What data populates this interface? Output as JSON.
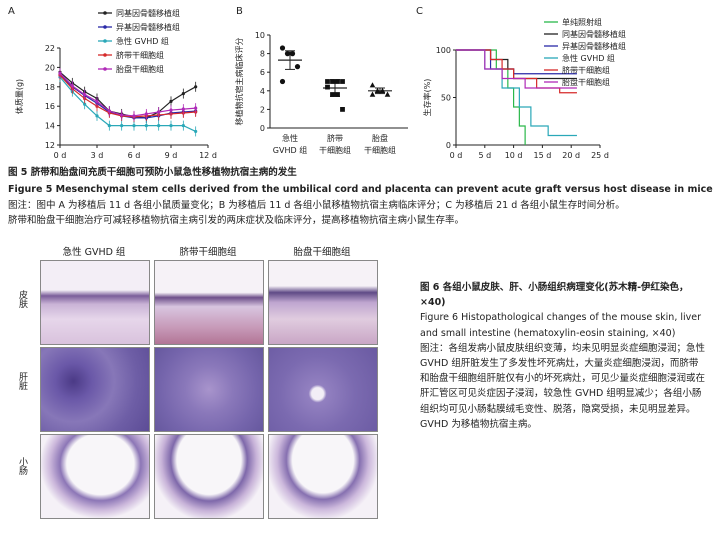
{
  "fig5": {
    "title": "图 5   脐带和胎盘间充质干细胞可预防小鼠急性移植物抗宿主病的发生",
    "title_en": "Figure 5   Mesenchymal stem cells derived from the umbilical cord and placenta can prevent acute graft versus host disease in mice",
    "note1": "图注：图中 A 为移植后 11 d 各组小鼠质量变化；B 为移植后 11 d 各组小鼠移植物抗宿主病临床评分；C 为移植后 21 d 各组小鼠生存时间分析。",
    "note2": "脐带和胎盘干细胞治疗可减轻移植物抗宿主病引发的两床症状及临床评分，提高移植物抗宿主病小鼠生存率。"
  },
  "fig6": {
    "col_headers": [
      "急性 GVHD 组",
      "脐带干细胞组",
      "胎盘干细胞组"
    ],
    "row_headers": [
      "皮肤",
      "肝脏",
      "小肠"
    ],
    "title": "图 6   各组小鼠皮肤、肝、小肠组织病理变化(苏木精-伊红染色，×40)",
    "title_en": "Figure 6   Histopathological changes of the mouse skin, liver and small intestine (hematoxylin-eosin staining, ×40)",
    "note": "图注：各组发病小鼠皮肤组织变薄，均未见明显炎症细胞浸润；急性 GVHD 组肝脏发生了多发性坏死病灶，大量炎症细胞浸润，而脐带和胎盘干细胞组肝脏仅有小的坏死病灶，可见少量炎症细胞浸润或在肝汇管区可见炎症因子浸润，较急性 GVHD 组明显减少；各组小肠组织均可见小肠黏膜绒毛变性、脱落，隐窝受损，未见明显差异。GVHD 为移植物抗宿主病。"
  },
  "chart_data": [
    {
      "panel": "A",
      "type": "line",
      "ylabel": "体质量(g)",
      "x_ticks": [
        "0 d",
        "3 d",
        "6 d",
        "9 d",
        "12 d"
      ],
      "y_ticks": [
        12,
        14,
        16,
        18,
        20,
        22
      ],
      "ylim": [
        12,
        22
      ],
      "xlim": [
        0,
        12
      ],
      "x": [
        0,
        1,
        2,
        3,
        4,
        5,
        6,
        7,
        8,
        9,
        10,
        11
      ],
      "series": [
        {
          "name": "同基因骨髓移植组",
          "color": "#222222",
          "marker": "circle",
          "values": [
            19.5,
            18.4,
            17.5,
            16.8,
            15.5,
            15.2,
            14.9,
            14.8,
            15.4,
            16.5,
            17.3,
            18.0
          ]
        },
        {
          "name": "异基因骨髓移植组",
          "color": "#2a2aa8",
          "marker": "circle",
          "values": [
            19.3,
            18.0,
            17.1,
            16.3,
            15.4,
            15.0,
            14.8,
            14.8,
            15.0,
            15.3,
            15.4,
            15.5
          ]
        },
        {
          "name": "急性 GVHD 组",
          "color": "#2aa8b8",
          "marker": "circle",
          "values": [
            19.0,
            17.5,
            16.2,
            15.0,
            14.0,
            14.0,
            14.0,
            14.0,
            14.0,
            14.0,
            14.0,
            13.4
          ]
        },
        {
          "name": "脐带干细胞组",
          "color": "#d62a2a",
          "marker": "circle",
          "values": [
            19.2,
            17.8,
            16.8,
            16.0,
            15.3,
            15.0,
            14.9,
            15.0,
            15.1,
            15.2,
            15.3,
            15.4
          ]
        },
        {
          "name": "胎盘干细胞组",
          "color": "#b02ab8",
          "marker": "circle",
          "values": [
            19.4,
            18.1,
            17.2,
            16.5,
            15.5,
            15.1,
            15.0,
            15.2,
            15.4,
            15.6,
            15.7,
            15.8
          ]
        }
      ]
    },
    {
      "panel": "B",
      "type": "scatter",
      "ylabel": "移植物抗宿主病临床评分",
      "y_ticks": [
        0,
        2,
        4,
        6,
        8,
        10
      ],
      "ylim": [
        0,
        10
      ],
      "categories": [
        "急性 GVHD 组",
        "脐带干细胞组",
        "胎盘干细胞组"
      ],
      "groups": [
        {
          "category": "急性 GVHD 组",
          "marker": "circle",
          "mean": 7.3,
          "sd": 1.0,
          "points": [
            8.6,
            8.0,
            8.0,
            6.6,
            5.0
          ]
        },
        {
          "category": "脐带干细胞组",
          "marker": "square",
          "mean": 4.3,
          "sd": 0.9,
          "points": [
            5.0,
            5.0,
            5.0,
            5.0,
            4.4,
            3.6,
            3.6,
            2.0
          ]
        },
        {
          "category": "胎盘干细胞组",
          "marker": "triangle",
          "mean": 4.0,
          "sd": 0.3,
          "points": [
            4.6,
            4.0,
            4.0,
            3.6,
            3.6
          ]
        }
      ]
    },
    {
      "panel": "C",
      "type": "line",
      "ylabel": "生存率(%)",
      "x_ticks": [
        "0 d",
        "5 d",
        "10 d",
        "15 d",
        "20 d",
        "25 d"
      ],
      "y_ticks": [
        0,
        50,
        100
      ],
      "ylim": [
        0,
        100
      ],
      "xlim": [
        0,
        25
      ],
      "legend": [
        "单纯照射组",
        "同基因骨髓移植组",
        "异基因骨髓移植组",
        "急性 GVHD 组",
        "脐带干细胞组",
        "胎盘干细胞组"
      ],
      "series": [
        {
          "name": "单纯照射组",
          "color": "#2ab84a",
          "steps": [
            [
              0,
              100
            ],
            [
              7,
              100
            ],
            [
              7,
              80
            ],
            [
              9,
              80
            ],
            [
              9,
              60
            ],
            [
              10,
              60
            ],
            [
              10,
              40
            ],
            [
              11,
              40
            ],
            [
              11,
              20
            ],
            [
              12,
              20
            ],
            [
              12,
              0
            ]
          ]
        },
        {
          "name": "同基因骨髓移植组",
          "color": "#222222",
          "steps": [
            [
              0,
              100
            ],
            [
              6,
              100
            ],
            [
              6,
              90
            ],
            [
              9,
              90
            ],
            [
              9,
              80
            ],
            [
              10,
              80
            ],
            [
              10,
              70
            ],
            [
              21,
              70
            ]
          ]
        },
        {
          "name": "异基因骨髓移植组",
          "color": "#2a2aa8",
          "steps": [
            [
              0,
              100
            ],
            [
              6,
              100
            ],
            [
              6,
              80
            ],
            [
              10,
              80
            ],
            [
              10,
              75
            ],
            [
              21,
              75
            ]
          ]
        },
        {
          "name": "急性 GVHD 组",
          "color": "#2aa8b8",
          "steps": [
            [
              0,
              100
            ],
            [
              5,
              100
            ],
            [
              5,
              80
            ],
            [
              8,
              80
            ],
            [
              8,
              60
            ],
            [
              11,
              60
            ],
            [
              11,
              40
            ],
            [
              13,
              40
            ],
            [
              13,
              20
            ],
            [
              16,
              20
            ],
            [
              16,
              10
            ],
            [
              21,
              10
            ]
          ]
        },
        {
          "name": "脐带干细胞组",
          "color": "#d62a2a",
          "steps": [
            [
              0,
              100
            ],
            [
              6,
              100
            ],
            [
              6,
              90
            ],
            [
              8,
              90
            ],
            [
              8,
              80
            ],
            [
              10,
              80
            ],
            [
              10,
              70
            ],
            [
              14,
              70
            ],
            [
              14,
              60
            ],
            [
              18,
              60
            ],
            [
              18,
              55
            ],
            [
              21,
              55
            ]
          ]
        },
        {
          "name": "胎盘干细胞组",
          "color": "#b02ab8",
          "steps": [
            [
              0,
              100
            ],
            [
              5,
              100
            ],
            [
              5,
              80
            ],
            [
              8,
              80
            ],
            [
              8,
              70
            ],
            [
              12,
              70
            ],
            [
              12,
              60
            ],
            [
              21,
              60
            ]
          ]
        }
      ]
    }
  ]
}
